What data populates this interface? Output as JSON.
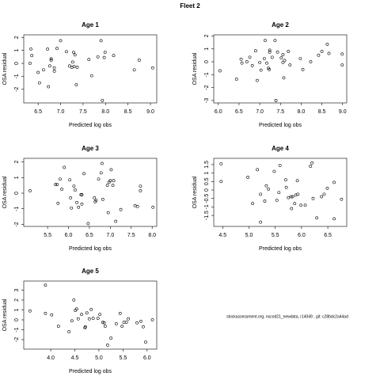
{
  "title": "Fleet 2",
  "footer": "stockassessment.org, nscod21_newdata, r14049 , git: c28bdc2a44ad",
  "chart_data": [
    {
      "type": "scatter",
      "title": "Age 1",
      "x_label": "Predicted log obs",
      "y_label": "OSA residual",
      "xlim": [
        6.18,
        9.14
      ],
      "ylim": [
        -3.05,
        2.2
      ],
      "xticks": [
        6.5,
        {
          "value": 7,
          "label": "7.0"
        },
        7.5,
        {
          "value": 8,
          "label": "8.0"
        },
        8.5,
        {
          "value": 9,
          "label": "9.0"
        }
      ],
      "yticks": [
        -2,
        -1,
        0,
        1,
        2
      ],
      "x": [
        6.34,
        6.36,
        6.32,
        6.5,
        6.53,
        6.62,
        6.71,
        6.73,
        6.76,
        6.79,
        6.79,
        6.86,
        6.86,
        6.92,
        7.0,
        7.13,
        7.2,
        7.25,
        7.27,
        7.29,
        7.3,
        7.32,
        7.35,
        7.37,
        7.63,
        7.69,
        7.83,
        7.9,
        7.99,
        7.97,
        7.93,
        8.18,
        8.64,
        8.75,
        9.05
      ],
      "values": [
        1.1,
        0.6,
        0.0,
        -0.7,
        -1.5,
        -0.5,
        1.1,
        -1.8,
        -0.2,
        0.25,
        0.35,
        -0.35,
        -0.6,
        1.15,
        1.75,
        0.9,
        -0.2,
        -0.3,
        0.1,
        0.85,
        -0.25,
        0.65,
        -1.65,
        -0.3,
        0.3,
        -0.95,
        0.5,
        1.75,
        0.85,
        0.45,
        -2.85,
        0.6,
        -0.5,
        0.25,
        -0.35
      ]
    },
    {
      "type": "scatter",
      "title": "Age 2",
      "x_label": "Predicted log obs",
      "y_label": "OSA residual",
      "xlim": [
        5.89,
        9.1
      ],
      "ylim": [
        -3.19,
        2.09
      ],
      "xticks": [
        {
          "value": 6,
          "label": "6.0"
        },
        6.5,
        {
          "value": 7,
          "label": "7.0"
        },
        7.5,
        {
          "value": 8,
          "label": "8.0"
        },
        8.5,
        {
          "value": 9,
          "label": "9.0"
        }
      ],
      "yticks": [
        -3,
        -2,
        -1,
        0,
        1,
        2
      ],
      "x": [
        6.04,
        6.44,
        6.55,
        6.57,
        6.69,
        6.76,
        6.82,
        6.9,
        6.94,
        7.0,
        7.03,
        7.11,
        7.13,
        7.17,
        7.21,
        7.23,
        7.24,
        7.24,
        7.3,
        7.37,
        7.39,
        7.43,
        7.52,
        7.56,
        7.56,
        7.6,
        7.58,
        7.69,
        7.73,
        7.98,
        8.04,
        8.23,
        8.42,
        8.5,
        8.63,
        8.67,
        8.99,
        8.99
      ],
      "values": [
        -0.7,
        -1.35,
        0.2,
        -0.1,
        0.0,
        0.35,
        -0.3,
        0.85,
        -1.45,
        -0.05,
        -0.65,
        0.25,
        1.65,
        -0.1,
        -0.5,
        -0.6,
        0.75,
        0.9,
        0.35,
        1.65,
        -3.0,
        0.75,
        0.3,
        0.55,
        -0.05,
        0.1,
        -1.25,
        0.8,
        -0.25,
        0.25,
        -0.6,
        0.0,
        0.5,
        0.8,
        1.35,
        0.65,
        0.6,
        -0.25
      ]
    },
    {
      "type": "scatter",
      "title": "Age 3",
      "x_label": "Predicted log obs",
      "y_label": "OSA residual",
      "xlim": [
        4.93,
        8.11
      ],
      "ylim": [
        -2.13,
        2.23
      ],
      "xticks": [
        5.5,
        {
          "value": 6,
          "label": "6.0"
        },
        6.5,
        {
          "value": 7,
          "label": "7.0"
        },
        7.5,
        {
          "value": 8,
          "label": "8.0"
        }
      ],
      "yticks": [
        -2,
        -1,
        0,
        1,
        2
      ],
      "x": [
        5.08,
        5.69,
        5.73,
        5.75,
        5.8,
        5.84,
        5.9,
        6.03,
        6.05,
        6.07,
        6.13,
        6.16,
        6.2,
        6.24,
        6.3,
        6.32,
        6.32,
        6.37,
        6.47,
        6.62,
        6.66,
        6.64,
        6.72,
        6.78,
        6.8,
        6.82,
        6.93,
        6.95,
        6.97,
        7.0,
        7.02,
        7.06,
        7.08,
        7.13,
        7.25,
        7.59,
        7.65,
        7.72,
        7.72,
        8.02
      ],
      "values": [
        0.15,
        0.55,
        0.55,
        -0.65,
        0.9,
        0.25,
        1.65,
        0.85,
        -0.3,
        -0.95,
        0.45,
        0.2,
        -0.6,
        -0.9,
        -0.1,
        -0.1,
        -0.7,
        1.25,
        -1.95,
        -0.3,
        -0.45,
        -0.55,
        0.9,
        1.3,
        1.9,
        -0.4,
        0.5,
        -1.25,
        0.7,
        0.8,
        1.5,
        0.5,
        0.8,
        -1.8,
        -1.05,
        -0.8,
        -0.85,
        0.45,
        0.15,
        -0.9
      ]
    },
    {
      "type": "scatter",
      "title": "Age 4",
      "x_label": "Predicted log obs",
      "y_label": "OSA residual",
      "xlim": [
        4.33,
        6.86
      ],
      "ylim": [
        -2.15,
        1.87
      ],
      "xticks": [
        4.5,
        {
          "value": 5,
          "label": "5.0"
        },
        5.5,
        {
          "value": 6,
          "label": "6.0"
        },
        6.5
      ],
      "yticks": [
        -1.5,
        -1,
        -0.5,
        0,
        0.5,
        1,
        1.5
      ],
      "x": [
        4.47,
        4.47,
        4.98,
        5.07,
        5.16,
        5.22,
        5.22,
        5.3,
        5.33,
        5.37,
        5.48,
        5.53,
        5.59,
        5.57,
        5.7,
        5.71,
        5.75,
        5.8,
        5.81,
        5.83,
        5.87,
        5.89,
        5.92,
        5.93,
        5.99,
        6.07,
        6.17,
        6.2,
        6.22,
        6.29,
        6.38,
        6.43,
        6.49,
        6.62,
        6.62,
        6.76
      ],
      "values": [
        1.55,
        0.5,
        0.75,
        -0.8,
        1.2,
        -1.9,
        -0.25,
        -0.65,
        0.25,
        0.05,
        1.1,
        -0.6,
        1.45,
        -0.15,
        0.6,
        0.15,
        -0.45,
        -0.4,
        -1.1,
        -0.4,
        -0.8,
        -0.3,
        0.55,
        -0.25,
        -0.9,
        -0.9,
        1.4,
        1.6,
        -0.5,
        -1.65,
        -0.4,
        -0.25,
        0.1,
        0.45,
        -1.7,
        -0.55
      ]
    },
    {
      "type": "scatter",
      "title": "Age 5",
      "x_label": "Predicted log obs",
      "y_label": "OSA residual",
      "xlim": [
        3.44,
        6.2
      ],
      "ylim": [
        -2.96,
        3.92
      ],
      "xticks": [
        {
          "value": 4,
          "label": "4.0"
        },
        4.5,
        {
          "value": 5,
          "label": "5.0"
        },
        5.5,
        {
          "value": 6,
          "label": "6.0"
        }
      ],
      "yticks": [
        -2,
        -1,
        0,
        1,
        2,
        3
      ],
      "x": [
        3.57,
        3.89,
        3.89,
        4.02,
        4.16,
        4.38,
        4.44,
        4.48,
        4.51,
        4.54,
        4.57,
        4.64,
        4.71,
        4.72,
        4.75,
        4.8,
        4.84,
        4.88,
        4.98,
        5.02,
        5.08,
        5.11,
        5.13,
        5.18,
        5.25,
        5.36,
        5.44,
        5.48,
        5.52,
        5.57,
        5.61,
        5.79,
        5.87,
        5.92,
        5.97,
        6.11
      ],
      "values": [
        0.9,
        3.5,
        0.65,
        0.5,
        -0.65,
        -1.2,
        -0.1,
        2.0,
        0.95,
        1.1,
        0.1,
        0.55,
        -0.8,
        -0.7,
        0.7,
        0.1,
        1.05,
        0.15,
        0.15,
        0.55,
        -0.25,
        -0.3,
        -0.65,
        -2.55,
        -1.85,
        -0.4,
        0.65,
        -0.65,
        -0.25,
        -0.25,
        0.1,
        -0.3,
        -0.15,
        -0.7,
        -2.25,
        0.0
      ]
    }
  ]
}
